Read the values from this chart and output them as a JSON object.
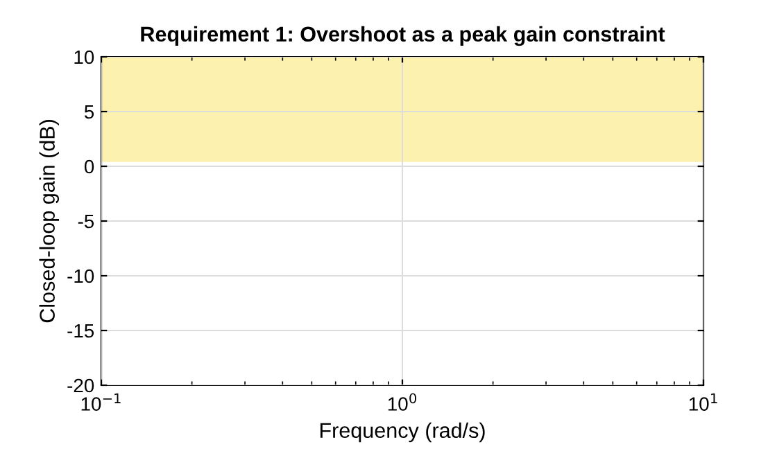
{
  "chart_data": {
    "type": "line",
    "title": "Requirement 1: Overshoot as a peak gain constraint",
    "xlabel": "Frequency (rad/s)",
    "ylabel": "Closed-loop gain (dB)",
    "log": "x",
    "grid": true,
    "xlim": [
      0.1,
      10
    ],
    "xticks": [
      {
        "value": 0.1,
        "label": "10$^{−1}$"
      },
      {
        "value": 1,
        "label": "10$^{0}$"
      },
      {
        "value": 10,
        "label": "10$^{1}$"
      }
    ],
    "ylim": [
      -20,
      10
    ],
    "yticks": [
      -20,
      -15,
      -10,
      -5,
      0,
      5,
      10
    ],
    "bands": [
      {
        "axis": "y",
        "from": 0.4,
        "to": 10,
        "color": "#fdf1b0"
      }
    ]
  }
}
